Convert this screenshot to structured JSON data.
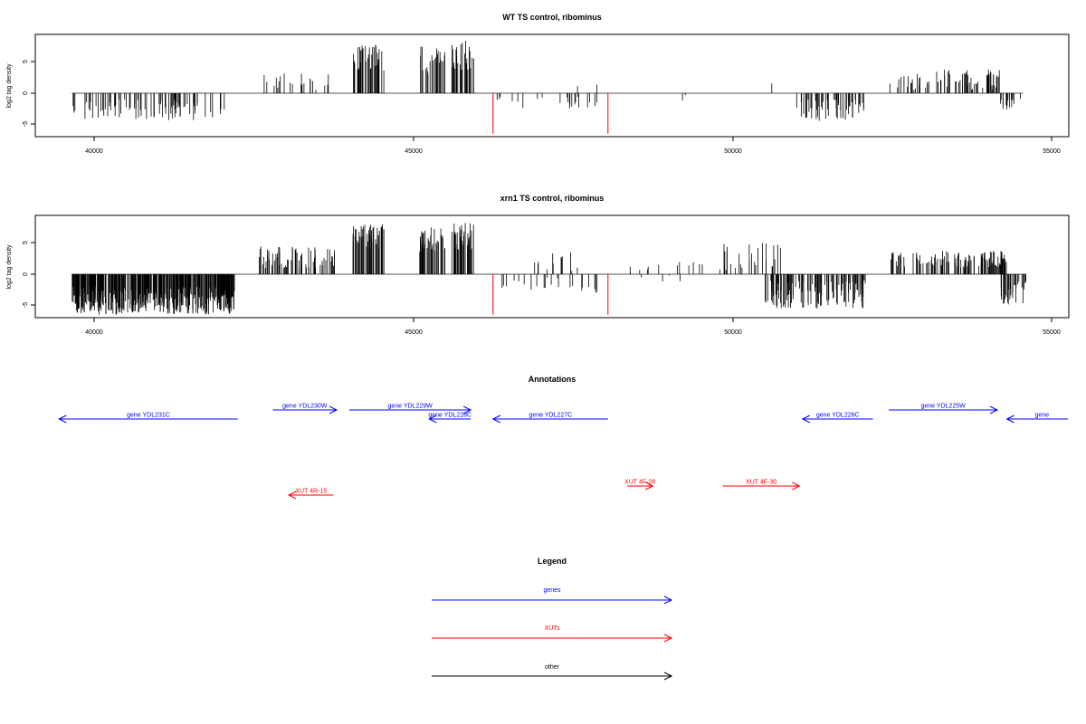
{
  "colors": {
    "gene": "#0000ff",
    "xut": "#ff0000",
    "other": "#000000",
    "signal": "#000000",
    "marker": "#ff0000"
  },
  "panel_titles": {
    "wt": "WT TS control, ribominus",
    "xrn1": "xrn1 TS control, ribominus",
    "annotations": "Annotations",
    "legend": "Legend"
  },
  "ylabel": "log2 tag density",
  "x_ticks": [
    "40000",
    "45000",
    "50000",
    "55000"
  ],
  "y_ticks": [
    "-5",
    "0",
    "5"
  ],
  "legend_labels": [
    "genes",
    "XUTs",
    "other"
  ],
  "annotations": [
    {
      "name": "gene YDL231C",
      "type": "gene",
      "strand": "-",
      "start": 39450,
      "end": 42250,
      "row": 2
    },
    {
      "name": "gene YDL230W",
      "type": "gene",
      "strand": "+",
      "start": 42800,
      "end": 43800,
      "row": 1
    },
    {
      "name": "gene YDL229W",
      "type": "gene",
      "strand": "+",
      "start": 44000,
      "end": 45900,
      "row": 1
    },
    {
      "name": "gene YDL228C",
      "type": "gene",
      "strand": "-",
      "start": 45250,
      "end": 45900,
      "row": 2
    },
    {
      "name": "gene YDL227C",
      "type": "gene",
      "strand": "-",
      "start": 46250,
      "end": 48050,
      "row": 2
    },
    {
      "name": "gene YDL226C",
      "type": "gene",
      "strand": "-",
      "start": 51100,
      "end": 52200,
      "row": 2
    },
    {
      "name": "gene YDL225W",
      "type": "gene",
      "strand": "+",
      "start": 52450,
      "end": 54150,
      "row": 1
    },
    {
      "name": "gene",
      "type": "gene",
      "strand": "-",
      "start": 54300,
      "end": 55400,
      "row": 2
    },
    {
      "name": "XUT 4R-15",
      "type": "xut",
      "strand": "-",
      "start": 43050,
      "end": 43750,
      "row": 4
    },
    {
      "name": "XUT 4F-28",
      "type": "xut",
      "strand": "+",
      "start": 48350,
      "end": 48750,
      "row": 3
    },
    {
      "name": "XUT 4F-30",
      "type": "xut",
      "strand": "+",
      "start": 49850,
      "end": 51050,
      "row": 3
    }
  ],
  "chart_data": [
    {
      "type": "bar",
      "title": "WT TS control, ribominus",
      "xlabel": "",
      "ylabel": "log2 tag density",
      "xlim": [
        39450,
        55400
      ],
      "ylim": [
        -7,
        9
      ],
      "x_ticks": [
        40000,
        45000,
        50000,
        55000
      ],
      "y_ticks": [
        -5,
        0,
        5
      ],
      "signal_range": [
        39650,
        54550
      ],
      "segments": [
        {
          "start": 39650,
          "end": 42050,
          "strand": "-",
          "min": 1,
          "max": 4.3,
          "density": 0.5
        },
        {
          "start": 42550,
          "end": 43750,
          "strand": "+",
          "min": 0.5,
          "max": 3.2,
          "density": 0.25
        },
        {
          "start": 44050,
          "end": 44550,
          "strand": "+",
          "min": 3.5,
          "max": 7.8,
          "density": 1.0
        },
        {
          "start": 45100,
          "end": 45500,
          "strand": "+",
          "min": 3,
          "max": 7.5,
          "density": 1.0
        },
        {
          "start": 45600,
          "end": 45950,
          "strand": "+",
          "min": 3.5,
          "max": 8.5,
          "density": 1.0
        },
        {
          "start": 46300,
          "end": 47100,
          "strand": "-",
          "min": 0.5,
          "max": 2.5,
          "density": 0.15
        },
        {
          "start": 47200,
          "end": 47900,
          "strand": "-",
          "min": 0.5,
          "max": 2.5,
          "density": 0.3
        },
        {
          "start": 47300,
          "end": 48000,
          "strand": "+",
          "min": 0.3,
          "max": 2.2,
          "density": 0.05
        },
        {
          "start": 48300,
          "end": 49300,
          "strand": "-",
          "min": 0.2,
          "max": 1.2,
          "density": 0.03
        },
        {
          "start": 50200,
          "end": 50900,
          "strand": "+",
          "min": 0.5,
          "max": 2,
          "density": 0.03
        },
        {
          "start": 51000,
          "end": 52100,
          "strand": "-",
          "min": 1,
          "max": 4.5,
          "density": 0.7
        },
        {
          "start": 52450,
          "end": 54200,
          "strand": "+",
          "min": 0.5,
          "max": 3.8,
          "density": 0.6
        },
        {
          "start": 54200,
          "end": 54550,
          "strand": "-",
          "min": 0.5,
          "max": 3,
          "density": 0.7
        }
      ],
      "markers": [
        {
          "x": 46250,
          "value": -6.5
        },
        {
          "x": 48050,
          "value": -6.5
        }
      ]
    },
    {
      "type": "bar",
      "title": "xrn1 TS control, ribominus",
      "xlabel": "",
      "ylabel": "log2 tag density",
      "xlim": [
        39450,
        55400
      ],
      "ylim": [
        -7,
        9
      ],
      "x_ticks": [
        40000,
        45000,
        50000,
        55000
      ],
      "y_ticks": [
        -5,
        0,
        5
      ],
      "signal_range": [
        39650,
        54600
      ],
      "segments": [
        {
          "start": 39650,
          "end": 42200,
          "strand": "-",
          "min": 2,
          "max": 6.5,
          "density": 2.5
        },
        {
          "start": 42550,
          "end": 43800,
          "strand": "+",
          "min": 1,
          "max": 4.5,
          "density": 0.8
        },
        {
          "start": 44050,
          "end": 44550,
          "strand": "+",
          "min": 4,
          "max": 8.2,
          "density": 1.5
        },
        {
          "start": 45100,
          "end": 45500,
          "strand": "+",
          "min": 3,
          "max": 7.5,
          "density": 1.5
        },
        {
          "start": 45600,
          "end": 45950,
          "strand": "+",
          "min": 3.5,
          "max": 8.8,
          "density": 1.5
        },
        {
          "start": 46300,
          "end": 47300,
          "strand": "-",
          "min": 0.5,
          "max": 2.5,
          "density": 0.2
        },
        {
          "start": 46900,
          "end": 48000,
          "strand": "+",
          "min": 0.5,
          "max": 3.5,
          "density": 0.15
        },
        {
          "start": 47400,
          "end": 48000,
          "strand": "-",
          "min": 0.5,
          "max": 3,
          "density": 0.2
        },
        {
          "start": 48300,
          "end": 50000,
          "strand": "+",
          "min": 0.3,
          "max": 2,
          "density": 0.12
        },
        {
          "start": 48500,
          "end": 49400,
          "strand": "-",
          "min": 0.2,
          "max": 1.2,
          "density": 0.06
        },
        {
          "start": 49800,
          "end": 50800,
          "strand": "+",
          "min": 0.5,
          "max": 5,
          "density": 0.35
        },
        {
          "start": 50500,
          "end": 52100,
          "strand": "-",
          "min": 1,
          "max": 5.5,
          "density": 1.0
        },
        {
          "start": 52450,
          "end": 54300,
          "strand": "+",
          "min": 1,
          "max": 3.8,
          "density": 0.9
        },
        {
          "start": 54200,
          "end": 54600,
          "strand": "-",
          "min": 1,
          "max": 5,
          "density": 1.0
        }
      ],
      "markers": [
        {
          "x": 46250,
          "value": -6.5
        },
        {
          "x": 48050,
          "value": -6.5
        }
      ]
    }
  ]
}
